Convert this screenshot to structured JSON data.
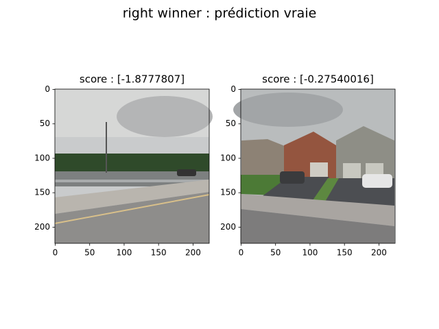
{
  "title": "right winner : prédiction vraie",
  "chart_data": [
    {
      "type": "image",
      "title": "score : [-1.8777807]",
      "xlim": [
        -0.5,
        223.5
      ],
      "ylim": [
        223.5,
        -0.5
      ],
      "xticks": [
        0,
        50,
        100,
        150,
        200
      ],
      "yticks": [
        0,
        50,
        100,
        150,
        200
      ]
    },
    {
      "type": "image",
      "title": "score : [-0.27540016]",
      "xlim": [
        -0.5,
        223.5
      ],
      "ylim": [
        223.5,
        -0.5
      ],
      "xticks": [
        0,
        50,
        100,
        150,
        200
      ],
      "yticks": [
        0,
        50,
        100,
        150,
        200
      ]
    }
  ]
}
